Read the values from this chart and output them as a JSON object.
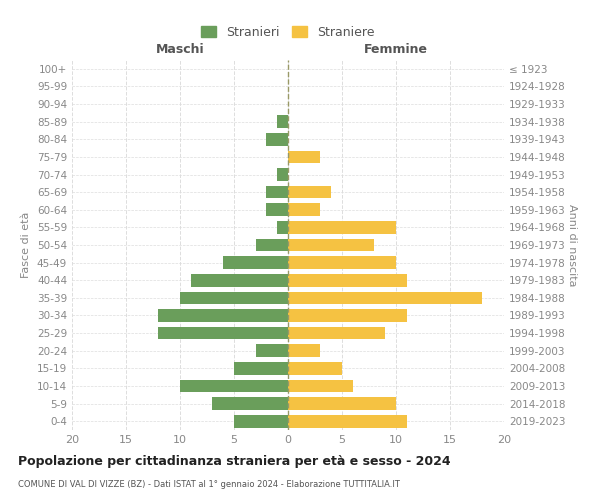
{
  "age_groups": [
    "0-4",
    "5-9",
    "10-14",
    "15-19",
    "20-24",
    "25-29",
    "30-34",
    "35-39",
    "40-44",
    "45-49",
    "50-54",
    "55-59",
    "60-64",
    "65-69",
    "70-74",
    "75-79",
    "80-84",
    "85-89",
    "90-94",
    "95-99",
    "100+"
  ],
  "birth_years": [
    "2019-2023",
    "2014-2018",
    "2009-2013",
    "2004-2008",
    "1999-2003",
    "1994-1998",
    "1989-1993",
    "1984-1988",
    "1979-1983",
    "1974-1978",
    "1969-1973",
    "1964-1968",
    "1959-1963",
    "1954-1958",
    "1949-1953",
    "1944-1948",
    "1939-1943",
    "1934-1938",
    "1929-1933",
    "1924-1928",
    "≤ 1923"
  ],
  "maschi": [
    5,
    7,
    10,
    5,
    3,
    12,
    12,
    10,
    9,
    6,
    3,
    1,
    2,
    2,
    1,
    0,
    2,
    1,
    0,
    0,
    0
  ],
  "femmine": [
    11,
    10,
    6,
    5,
    3,
    9,
    11,
    18,
    11,
    10,
    8,
    10,
    3,
    4,
    0,
    3,
    0,
    0,
    0,
    0,
    0
  ],
  "maschi_color": "#6a9e5b",
  "femmine_color": "#f5c242",
  "title": "Popolazione per cittadinanza straniera per età e sesso - 2024",
  "subtitle": "COMUNE DI VAL DI VIZZE (BZ) - Dati ISTAT al 1° gennaio 2024 - Elaborazione TUTTITALIA.IT",
  "xlabel_left": "Maschi",
  "xlabel_right": "Femmine",
  "ylabel_left": "Fasce di età",
  "ylabel_right": "Anni di nascita",
  "legend_stranieri": "Stranieri",
  "legend_straniere": "Straniere",
  "xlim": 20,
  "background_color": "#ffffff",
  "grid_color": "#dddddd",
  "bar_height": 0.72
}
